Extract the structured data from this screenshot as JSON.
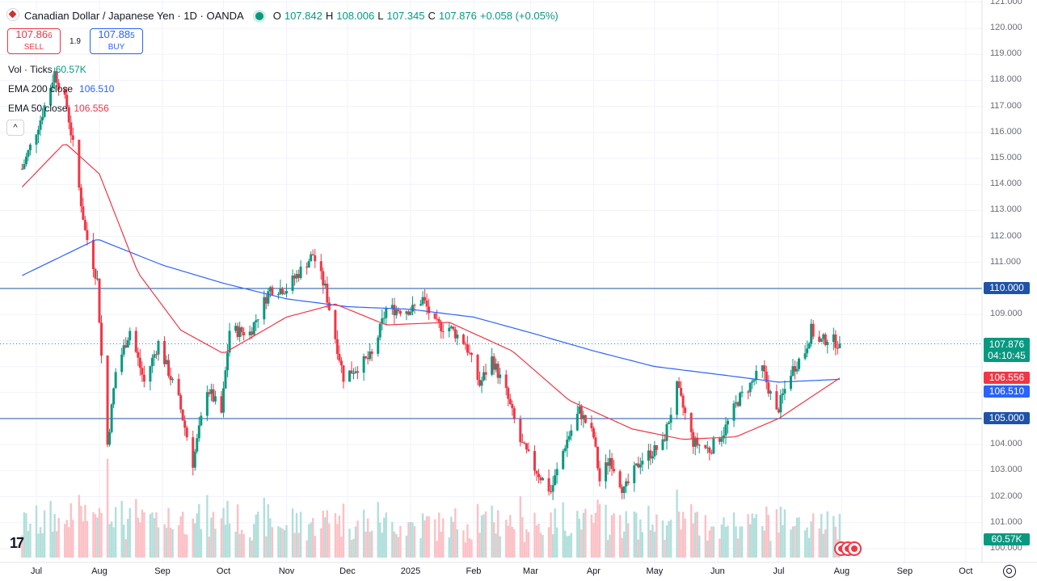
{
  "legend": {
    "symbol_title": "Canadian Dollar / Japanese Yen · 1D · OANDA",
    "o_label": "O",
    "o_value": "107.842",
    "h_label": "H",
    "h_value": "108.006",
    "l_label": "L",
    "l_value": "107.345",
    "c_label": "C",
    "c_value": "107.876",
    "change": "+0.058 (+0.05%)"
  },
  "trade": {
    "sell_price_main": "107.86",
    "sell_price_small": "6",
    "sell_label": "SELL",
    "spread": "1.9",
    "buy_price_main": "107.88",
    "buy_price_small": "5",
    "buy_label": "BUY"
  },
  "indicators": {
    "vol_label": "Vol · Ticks",
    "vol_value": "60.57K",
    "ema200_label": "EMA 200 close",
    "ema200_value": "106.510",
    "ema50_label": "EMA 50 close",
    "ema50_value": "106.556",
    "collapse_glyph": "^"
  },
  "price_axis_labels": [
    "121.000",
    "120.000",
    "119.000",
    "118.000",
    "117.000",
    "116.000",
    "115.000",
    "114.000",
    "113.000",
    "112.000",
    "111.000",
    "110.000",
    "109.000",
    "108.000",
    "107.000",
    "106.000",
    "105.000",
    "104.000",
    "103.000",
    "102.000",
    "101.000",
    "100.000"
  ],
  "price_tags": {
    "level_high": "110.000",
    "last_price": "107.876",
    "countdown": "04:10:45",
    "ema50": "106.556",
    "ema200": "106.510",
    "level_low": "105.000",
    "volume": "60.57K"
  },
  "time_axis_labels": [
    "Jul",
    "Aug",
    "Sep",
    "Oct",
    "Nov",
    "Dec",
    "2025",
    "Feb",
    "Mar",
    "Apr",
    "May",
    "Jun",
    "Jul",
    "Aug",
    "Sep",
    "Oct"
  ],
  "colors": {
    "up": "#089981",
    "down": "#f23645",
    "ema200": "#2962ff",
    "ema50": "#f23645",
    "hline": "#1e53a8",
    "vol_up": "#b2dfdb",
    "vol_down": "#fbc1c6"
  },
  "tv_logo": "17",
  "chart_data": {
    "type": "candlestick",
    "symbol": "CAD/JPY",
    "interval": "1D",
    "ylim": [
      100,
      121
    ],
    "horizontal_levels": [
      110.0,
      105.0
    ],
    "last_close": 107.876,
    "x_label_dates": [
      "2024-07-01",
      "2024-08-01",
      "2024-09-01",
      "2024-10-01",
      "2024-11-01",
      "2024-12-01",
      "2025-01-01",
      "2025-02-01",
      "2025-03-01",
      "2025-04-01",
      "2025-05-01",
      "2025-06-01",
      "2025-07-01",
      "2025-08-01",
      "2025-09-01",
      "2025-10-01"
    ],
    "start_date": "2024-06-24",
    "close_path_anchors": [
      {
        "d": "2024-06-24",
        "v": 114.6
      },
      {
        "d": "2024-07-03",
        "v": 116.5
      },
      {
        "d": "2024-07-10",
        "v": 118.3
      },
      {
        "d": "2024-07-16",
        "v": 117.0
      },
      {
        "d": "2024-07-19",
        "v": 115.5
      },
      {
        "d": "2024-07-25",
        "v": 112.2
      },
      {
        "d": "2024-07-31",
        "v": 110.3
      },
      {
        "d": "2024-08-02",
        "v": 107.4
      },
      {
        "d": "2024-08-05",
        "v": 104.0
      },
      {
        "d": "2024-08-09",
        "v": 106.8
      },
      {
        "d": "2024-08-16",
        "v": 108.4
      },
      {
        "d": "2024-08-23",
        "v": 106.4
      },
      {
        "d": "2024-08-30",
        "v": 107.9
      },
      {
        "d": "2024-09-09",
        "v": 105.7
      },
      {
        "d": "2024-09-16",
        "v": 103.3
      },
      {
        "d": "2024-09-23",
        "v": 106.2
      },
      {
        "d": "2024-09-30",
        "v": 105.2
      },
      {
        "d": "2024-10-04",
        "v": 108.4
      },
      {
        "d": "2024-10-14",
        "v": 108.3
      },
      {
        "d": "2024-10-24",
        "v": 110.0
      },
      {
        "d": "2024-11-01",
        "v": 110.0
      },
      {
        "d": "2024-11-14",
        "v": 111.3
      },
      {
        "d": "2024-11-20",
        "v": 110.0
      },
      {
        "d": "2024-11-29",
        "v": 106.6
      },
      {
        "d": "2024-12-06",
        "v": 107.0
      },
      {
        "d": "2024-12-13",
        "v": 107.4
      },
      {
        "d": "2024-12-20",
        "v": 109.2
      },
      {
        "d": "2025-01-02",
        "v": 109.2
      },
      {
        "d": "2025-01-07",
        "v": 109.6
      },
      {
        "d": "2025-01-13",
        "v": 108.6
      },
      {
        "d": "2025-01-20",
        "v": 108.5
      },
      {
        "d": "2025-01-28",
        "v": 107.9
      },
      {
        "d": "2025-02-04",
        "v": 106.3
      },
      {
        "d": "2025-02-10",
        "v": 107.3
      },
      {
        "d": "2025-02-17",
        "v": 106.0
      },
      {
        "d": "2025-02-24",
        "v": 104.1
      },
      {
        "d": "2025-03-03",
        "v": 103.1
      },
      {
        "d": "2025-03-11",
        "v": 102.2
      },
      {
        "d": "2025-03-18",
        "v": 104.0
      },
      {
        "d": "2025-03-25",
        "v": 105.3
      },
      {
        "d": "2025-04-01",
        "v": 104.3
      },
      {
        "d": "2025-04-04",
        "v": 102.6
      },
      {
        "d": "2025-04-09",
        "v": 103.5
      },
      {
        "d": "2025-04-16",
        "v": 102.2
      },
      {
        "d": "2025-04-24",
        "v": 103.4
      },
      {
        "d": "2025-05-05",
        "v": 104.0
      },
      {
        "d": "2025-05-12",
        "v": 106.2
      },
      {
        "d": "2025-05-20",
        "v": 104.1
      },
      {
        "d": "2025-05-28",
        "v": 103.8
      },
      {
        "d": "2025-06-04",
        "v": 104.5
      },
      {
        "d": "2025-06-11",
        "v": 105.7
      },
      {
        "d": "2025-06-18",
        "v": 106.4
      },
      {
        "d": "2025-06-23",
        "v": 106.9
      },
      {
        "d": "2025-06-30",
        "v": 105.2
      },
      {
        "d": "2025-07-07",
        "v": 106.8
      },
      {
        "d": "2025-07-14",
        "v": 107.6
      },
      {
        "d": "2025-07-17",
        "v": 108.4
      },
      {
        "d": "2025-07-21",
        "v": 107.9
      },
      {
        "d": "2025-07-25",
        "v": 108.1
      },
      {
        "d": "2025-07-31",
        "v": 107.876
      }
    ],
    "ema200_anchors": [
      {
        "d": "2024-06-24",
        "v": 110.5
      },
      {
        "d": "2024-07-31",
        "v": 111.9
      },
      {
        "d": "2024-09-01",
        "v": 110.9
      },
      {
        "d": "2024-10-01",
        "v": 110.2
      },
      {
        "d": "2024-11-01",
        "v": 109.6
      },
      {
        "d": "2024-12-01",
        "v": 109.3
      },
      {
        "d": "2025-01-01",
        "v": 109.2
      },
      {
        "d": "2025-02-01",
        "v": 108.9
      },
      {
        "d": "2025-03-01",
        "v": 108.3
      },
      {
        "d": "2025-04-01",
        "v": 107.6
      },
      {
        "d": "2025-05-01",
        "v": 107.0
      },
      {
        "d": "2025-06-01",
        "v": 106.7
      },
      {
        "d": "2025-07-01",
        "v": 106.4
      },
      {
        "d": "2025-07-31",
        "v": 106.51
      }
    ],
    "ema50_anchors": [
      {
        "d": "2024-06-24",
        "v": 113.9
      },
      {
        "d": "2024-07-15",
        "v": 115.6
      },
      {
        "d": "2024-08-01",
        "v": 114.4
      },
      {
        "d": "2024-08-20",
        "v": 110.6
      },
      {
        "d": "2024-09-10",
        "v": 108.4
      },
      {
        "d": "2024-10-01",
        "v": 107.5
      },
      {
        "d": "2024-11-01",
        "v": 108.9
      },
      {
        "d": "2024-11-25",
        "v": 109.4
      },
      {
        "d": "2024-12-20",
        "v": 108.6
      },
      {
        "d": "2025-01-20",
        "v": 108.7
      },
      {
        "d": "2025-02-20",
        "v": 107.6
      },
      {
        "d": "2025-03-20",
        "v": 105.7
      },
      {
        "d": "2025-04-20",
        "v": 104.6
      },
      {
        "d": "2025-05-15",
        "v": 104.2
      },
      {
        "d": "2025-06-10",
        "v": 104.3
      },
      {
        "d": "2025-07-01",
        "v": 105.0
      },
      {
        "d": "2025-07-31",
        "v": 106.556
      }
    ]
  }
}
